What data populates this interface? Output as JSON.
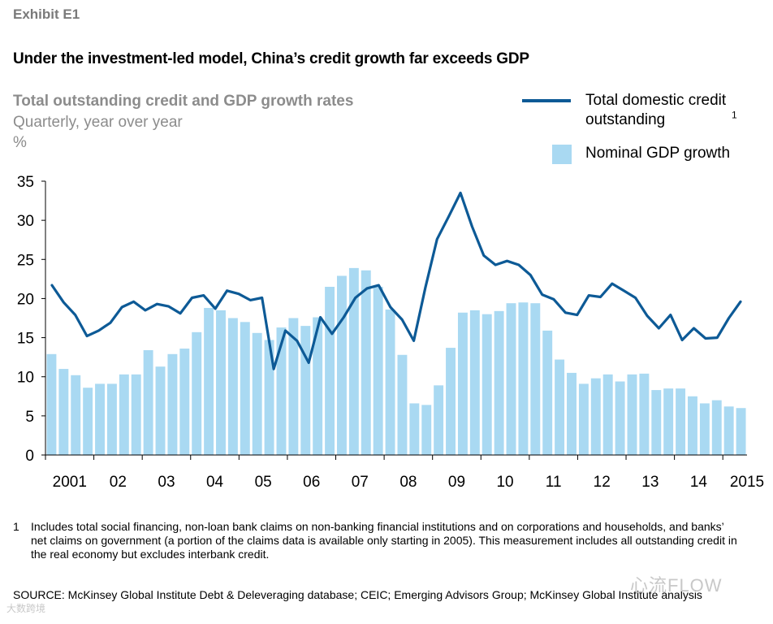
{
  "exhibit": "Exhibit E1",
  "headline": "Under the investment-led model, China’s credit growth far exceeds GDP",
  "chart_data": {
    "type": "bar+line",
    "title": "Total outstanding credit and GDP growth rates",
    "subtitle": "Quarterly, year over year",
    "ylabel": "%",
    "ylim": [
      0,
      35
    ],
    "yticks": [
      "0",
      "5",
      "10",
      "15",
      "20",
      "25",
      "30",
      "35"
    ],
    "xticks": [
      "2001",
      "02",
      "03",
      "04",
      "05",
      "06",
      "07",
      "08",
      "09",
      "10",
      "11",
      "12",
      "13",
      "14",
      "2015"
    ],
    "legend": {
      "line_label": "Total domestic credit outstanding",
      "line_sup": "1",
      "bar_label": "Nominal GDP growth"
    },
    "colors": {
      "line": "#0d5a96",
      "bar": "#a9d9f2"
    },
    "series": [
      {
        "name": "Nominal GDP growth",
        "kind": "bar",
        "values": [
          12.9,
          11.0,
          10.2,
          8.6,
          9.1,
          9.1,
          10.3,
          10.3,
          13.4,
          11.3,
          12.9,
          13.6,
          15.7,
          18.8,
          18.5,
          17.5,
          17.0,
          15.6,
          14.7,
          16.3,
          17.5,
          16.5,
          17.6,
          21.5,
          22.9,
          23.9,
          23.6,
          21.5,
          18.6,
          12.8,
          6.6,
          6.4,
          8.9,
          13.7,
          18.2,
          18.5,
          18.0,
          18.4,
          19.4,
          19.5,
          19.4,
          15.9,
          12.2,
          10.5,
          9.1,
          9.8,
          10.3,
          9.4,
          10.3,
          10.4,
          8.3,
          8.5,
          8.5,
          7.5,
          6.6,
          7.0,
          6.2,
          6.0
        ]
      },
      {
        "name": "Total domestic credit outstanding",
        "kind": "line",
        "values": [
          21.7,
          19.5,
          17.9,
          15.2,
          15.9,
          16.9,
          18.9,
          19.6,
          18.5,
          19.3,
          19.0,
          18.1,
          20.1,
          20.4,
          18.7,
          21.0,
          20.6,
          19.8,
          20.1,
          11.0,
          15.9,
          14.6,
          11.8,
          17.6,
          15.5,
          17.6,
          20.1,
          21.3,
          21.7,
          18.9,
          17.3,
          14.6,
          21.4,
          27.6,
          30.5,
          33.5,
          29.2,
          25.5,
          24.3,
          24.8,
          24.3,
          23.0,
          20.5,
          19.9,
          18.2,
          17.9,
          20.4,
          20.2,
          21.9,
          21.0,
          20.1,
          17.8,
          16.2,
          17.9,
          14.7,
          16.2,
          14.9,
          15.0,
          17.5,
          19.6
        ]
      }
    ]
  },
  "footnote": {
    "number": "1",
    "text": "Includes total social financing, non-loan bank claims on non-banking financial institutions and on corporations and households, and banks’ net claims on government (a portion of the claims data is available only starting in 2005). This measurement includes all outstanding credit in the real economy but excludes interbank credit."
  },
  "source": "SOURCE:  McKinsey Global Institute Debt & Deleveraging database; CEIC; Emerging Advisors Group; McKinsey Global Institute analysis",
  "watermarks": {
    "top": "心流FLOW",
    "bottom": "大数跨境"
  }
}
